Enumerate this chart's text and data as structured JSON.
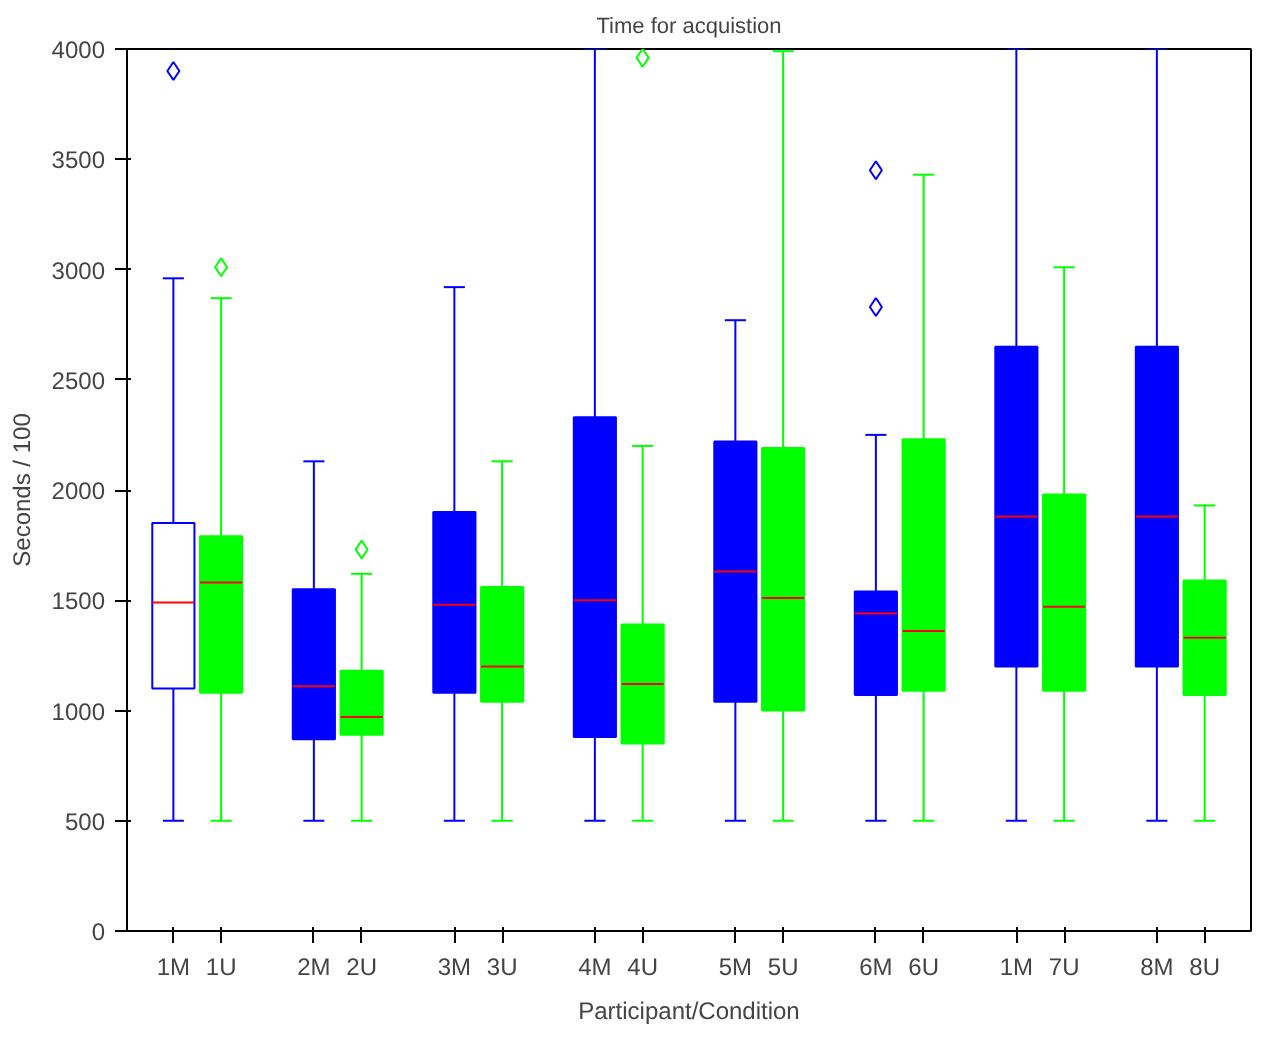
{
  "chart_data": {
    "type": "box",
    "title": "Time for acquistion",
    "xlabel": "Participant/Condition",
    "ylabel": "Seconds / 100",
    "categories": [
      "1M",
      "1U",
      "2M",
      "2U",
      "3M",
      "3U",
      "4M",
      "4U",
      "5M",
      "5U",
      "6M",
      "6U",
      "1M",
      "7U",
      "8M",
      "8U"
    ],
    "ylim": [
      0,
      4000
    ],
    "yticks": [
      0,
      500,
      1000,
      1500,
      2000,
      2500,
      3000,
      3500,
      4000
    ],
    "grid": false,
    "marker": "diamond",
    "series": [
      {
        "color": "#0000ff",
        "colors": [
          "#ffffff",
          null,
          "#0000ff",
          null,
          "#0000ff",
          null,
          "#0000ff",
          null,
          "#0000ff",
          null,
          "#0000ff",
          null,
          "#0000ff",
          null,
          "#0000ff",
          null
        ],
        "boxes": [
          {
            "low": 500,
            "q1": 1100,
            "median": 1490,
            "q3": 1850,
            "high": 2960,
            "outliers": [
              3900
            ]
          },
          null,
          {
            "low": 500,
            "q1": 870,
            "median": 1110,
            "q3": 1550,
            "high": 2130
          },
          null,
          {
            "low": 500,
            "q1": 1080,
            "median": 1480,
            "q3": 1900,
            "high": 2920
          },
          null,
          {
            "low": 500,
            "q1": 880,
            "median": 1500,
            "q3": 2330,
            "high": 4000
          },
          null,
          {
            "low": 500,
            "q1": 1040,
            "median": 1630,
            "q3": 2220,
            "high": 2770
          },
          null,
          {
            "low": 500,
            "q1": 1070,
            "median": 1440,
            "q3": 1540,
            "high": 2250,
            "outliers": [
              2830,
              3450
            ]
          },
          null,
          {
            "low": 500,
            "q1": 1200,
            "median": 1880,
            "q3": 2650,
            "high": 4000
          },
          null,
          {
            "low": 500,
            "q1": 1200,
            "median": 1880,
            "q3": 2650,
            "high": 4000
          },
          null
        ]
      },
      {
        "color": "#00ff00",
        "colors": [
          null,
          "#00ff00",
          null,
          "#00ff00",
          null,
          "#00ff00",
          null,
          "#00ff00",
          null,
          "#00ff00",
          null,
          "#00ff00",
          null,
          "#00ff00",
          null,
          "#00ff00"
        ],
        "boxes": [
          null,
          {
            "low": 500,
            "q1": 1080,
            "median": 1580,
            "q3": 1790,
            "high": 2870,
            "outliers": [
              3010
            ]
          },
          null,
          {
            "low": 500,
            "q1": 890,
            "median": 970,
            "q3": 1180,
            "high": 1620,
            "outliers": [
              1730
            ]
          },
          null,
          {
            "low": 500,
            "q1": 1040,
            "median": 1200,
            "q3": 1560,
            "high": 2130
          },
          null,
          {
            "low": 500,
            "q1": 850,
            "median": 1120,
            "q3": 1390,
            "high": 2200,
            "outliers": [
              3960
            ]
          },
          null,
          {
            "low": 500,
            "q1": 1000,
            "median": 1510,
            "q3": 2190,
            "high": 3990
          },
          null,
          {
            "low": 500,
            "q1": 1090,
            "median": 1360,
            "q3": 2230,
            "high": 3430
          },
          null,
          {
            "low": 500,
            "q1": 1090,
            "median": 1470,
            "q3": 1980,
            "high": 3010
          },
          null,
          {
            "low": 500,
            "q1": 1070,
            "median": 1330,
            "q3": 1590,
            "high": 1930
          }
        ]
      }
    ]
  }
}
